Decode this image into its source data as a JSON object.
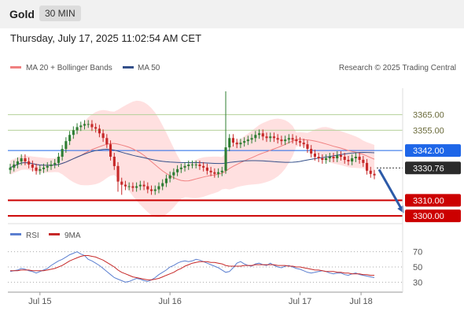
{
  "header": {
    "title": "Gold",
    "interval": "30 MIN"
  },
  "datetime": "Thursday, July 17, 2025 11:02:54 AM CET",
  "legend": {
    "ma20": "MA 20 + Bollinger Bands",
    "ma50": "MA 50",
    "rsi": "RSI",
    "rsi_ma": "9MA",
    "credit": "Research © 2025 Trading Central"
  },
  "colors": {
    "up": "#2e7d32",
    "down": "#c62828",
    "ma20": "#f08080",
    "ma50": "#34508a",
    "band": "#ffd6d6",
    "pivot": "#1e66e8",
    "support": "#cc0000",
    "resistance": "#b5d199",
    "arrow": "#2c5aa8",
    "rsi": "#5b7fd0",
    "rsi_ma": "#c62828"
  },
  "chart_data": [
    {
      "type": "candlestick",
      "xlabels": [
        "Jul 15",
        "Jul 16",
        "Jul 17",
        "Jul 18"
      ],
      "ylim": [
        3296,
        3382
      ],
      "close": [
        3331,
        3333,
        3335,
        3337,
        3335,
        3333,
        3331,
        3329,
        3330,
        3331,
        3332,
        3333,
        3334,
        3338,
        3343,
        3348,
        3352,
        3355,
        3357,
        3358,
        3359,
        3359,
        3357,
        3356,
        3353,
        3350,
        3346,
        3338,
        3332,
        3322,
        3320,
        3319,
        3319,
        3318,
        3319,
        3320,
        3319,
        3317,
        3316,
        3317,
        3319,
        3321,
        3324,
        3326,
        3328,
        3330,
        3331,
        3332,
        3333,
        3333,
        3333,
        3332,
        3331,
        3329,
        3328,
        3327,
        3328,
        3329,
        3344,
        3350,
        3347,
        3346,
        3347,
        3348,
        3349,
        3350,
        3352,
        3353,
        3351,
        3350,
        3351,
        3350,
        3349,
        3348,
        3349,
        3350,
        3349,
        3348,
        3347,
        3346,
        3343,
        3340,
        3338,
        3337,
        3336,
        3337,
        3338,
        3337,
        3339,
        3338,
        3336,
        3335,
        3337,
        3338,
        3336,
        3334,
        3329,
        3327,
        3326
      ],
      "pattern_wick": 2.5,
      "levels": {
        "resistance": [
          3365.0,
          3355.0
        ],
        "pivot": 3342.0,
        "last": 3330.76,
        "support": [
          3310.0,
          3300.0
        ]
      },
      "level_labels": {
        "r1": "3365.00",
        "r2": "3355.00",
        "pivot": "3342.00",
        "last": "3330.76",
        "s1": "3310.00",
        "s2": "3300.00"
      }
    },
    {
      "type": "line",
      "name": "RSI",
      "ylim": [
        20,
        80
      ],
      "yticks": [
        70,
        50,
        30
      ],
      "rsi": [
        44,
        45,
        46,
        48,
        47,
        45,
        44,
        42,
        44,
        46,
        48,
        52,
        55,
        58,
        60,
        63,
        66,
        68,
        70,
        67,
        65,
        60,
        58,
        55,
        52,
        48,
        44,
        40,
        36,
        34,
        32,
        30,
        31,
        33,
        35,
        34,
        32,
        31,
        33,
        36,
        40,
        43,
        46,
        50,
        52,
        55,
        57,
        58,
        57,
        58,
        60,
        59,
        57,
        55,
        53,
        51,
        49,
        46,
        43,
        44,
        49,
        55,
        57,
        54,
        52,
        51,
        54,
        55,
        53,
        52,
        55,
        52,
        50,
        49,
        51,
        52,
        50,
        48,
        47,
        45,
        43,
        42,
        43,
        44,
        45,
        44,
        42,
        41,
        42,
        42,
        40,
        39,
        41,
        42,
        40,
        39,
        38,
        37,
        36
      ],
      "ma9": [
        45,
        45,
        45,
        46,
        46,
        46,
        45,
        45,
        45,
        45,
        46,
        47,
        48,
        50,
        52,
        55,
        58,
        60,
        62,
        64,
        65,
        65,
        64,
        63,
        61,
        59,
        56,
        53,
        50,
        46,
        43,
        41,
        39,
        37,
        36,
        35,
        34,
        33,
        33,
        34,
        35,
        37,
        39,
        41,
        43,
        46,
        48,
        51,
        53,
        55,
        56,
        57,
        57,
        57,
        56,
        56,
        55,
        54,
        52,
        51,
        51,
        51,
        51,
        52,
        52,
        52,
        53,
        53,
        53,
        53,
        53,
        53,
        52,
        52,
        52,
        51,
        51,
        50,
        50,
        49,
        48,
        47,
        46,
        46,
        45,
        44,
        44,
        44,
        43,
        43,
        42,
        42,
        41,
        41,
        41,
        40,
        40,
        39,
        39
      ]
    }
  ]
}
